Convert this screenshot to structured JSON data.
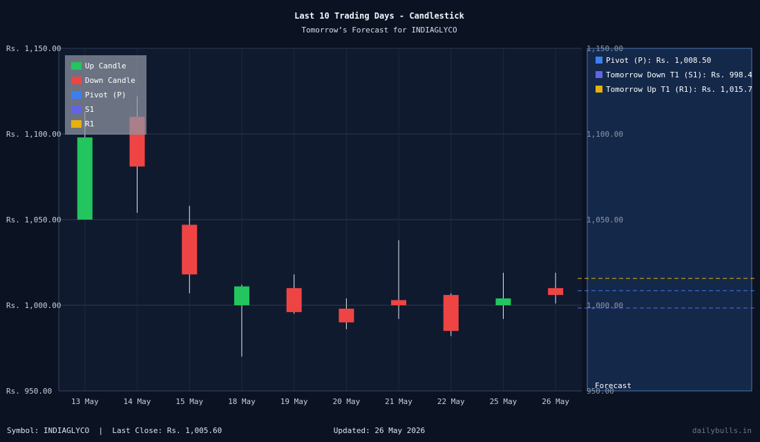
{
  "chart_data": {
    "type": "candlestick",
    "title": "Last 10 Trading Days - Candlestick",
    "subtitle": "Tomorrow’s Forecast for INDIAGLYCO",
    "ylim": [
      950,
      1150
    ],
    "yticks": [
      1150,
      1100,
      1050,
      1000,
      950
    ],
    "ytick_labels": [
      "Rs. 1,150.00",
      "Rs. 1,100.00",
      "Rs. 1,050.00",
      "Rs. 1,000.00",
      "Rs. 950.00"
    ],
    "ytick_labels_right": [
      "1,150.00",
      "1,100.00",
      "1,050.00",
      "1,000.00",
      "950.00"
    ],
    "categories": [
      "13 May",
      "14 May",
      "15 May",
      "18 May",
      "19 May",
      "20 May",
      "21 May",
      "22 May",
      "25 May",
      "26 May"
    ],
    "candles": [
      {
        "open": 1050,
        "close": 1098,
        "high": 1113,
        "low": 1050
      },
      {
        "open": 1110,
        "close": 1081,
        "high": 1122,
        "low": 1054
      },
      {
        "open": 1047,
        "close": 1018,
        "high": 1058,
        "low": 1007
      },
      {
        "open": 1000,
        "close": 1011,
        "high": 1012,
        "low": 970
      },
      {
        "open": 1010,
        "close": 996,
        "high": 1018,
        "low": 995
      },
      {
        "open": 998,
        "close": 990,
        "high": 1004,
        "low": 986
      },
      {
        "open": 1003,
        "close": 1000,
        "high": 1038,
        "low": 992
      },
      {
        "open": 1006,
        "close": 985,
        "high": 1007,
        "low": 982
      },
      {
        "open": 1000,
        "close": 1004,
        "high": 1019,
        "low": 992
      },
      {
        "open": 1010,
        "close": 1006,
        "high": 1019,
        "low": 1001
      }
    ],
    "levels": [
      {
        "name": "Pivot (P)",
        "value": 1008.5,
        "label": "Pivot (P): Rs. 1,008.50",
        "color": "#3b7ff2"
      },
      {
        "name": "S1",
        "value": 998.4,
        "label": "Tomorrow Down T1 (S1): Rs. 998.4",
        "color": "#6463e6"
      },
      {
        "name": "R1",
        "value": 1015.7,
        "label": "Tomorrow Up T1 (R1): Rs. 1,015.7",
        "color": "#e6b10c"
      }
    ],
    "legend": [
      {
        "label": "Up Candle",
        "color": "#22c55e"
      },
      {
        "label": "Down Candle",
        "color": "#ef4444"
      },
      {
        "label": "Pivot (P)",
        "color": "#3b7ff2"
      },
      {
        "label": "S1",
        "color": "#6463e6"
      },
      {
        "label": "R1",
        "color": "#e6b10c"
      }
    ],
    "legend_position": "top-left",
    "forecast_label": "Forecast",
    "grid": true,
    "colors": {
      "up": "#22c55e",
      "down": "#ef4444"
    }
  },
  "footer": {
    "symbol": "Symbol: INDIAGLYCO  |  Last Close: Rs. 1,005.60",
    "updated": "Updated: 26 May 2026",
    "brand": "dailybulls.in"
  }
}
